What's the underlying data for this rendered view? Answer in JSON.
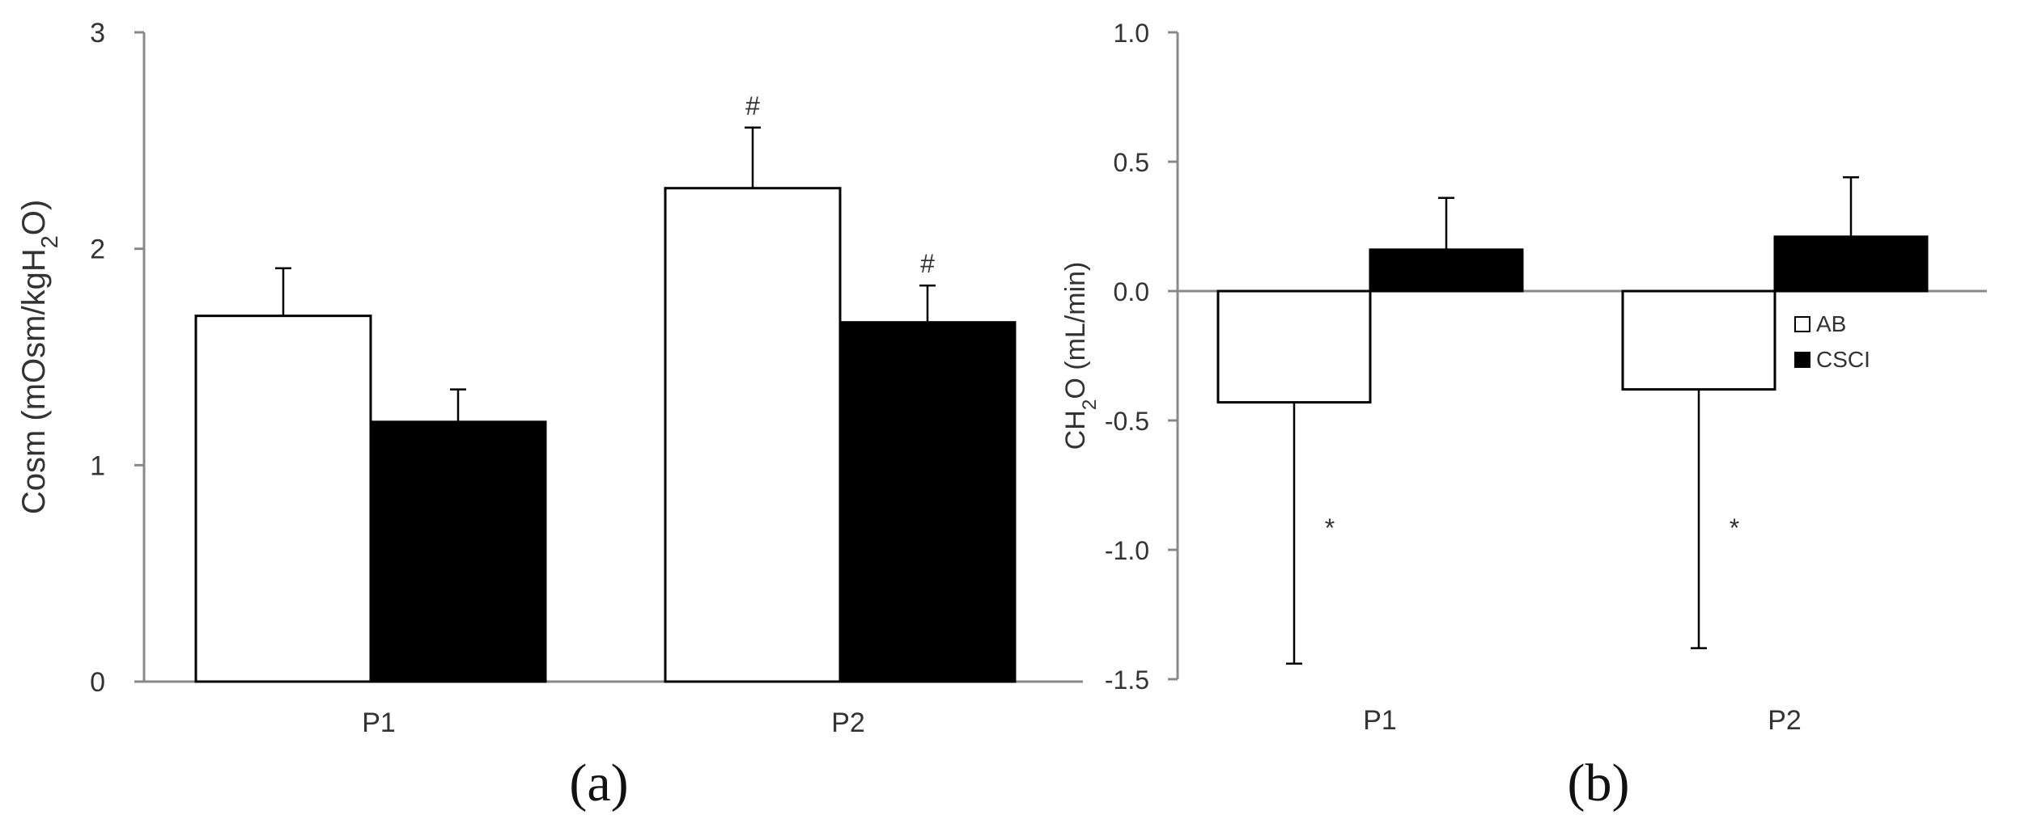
{
  "chart_data": [
    {
      "type": "bar",
      "panel_label": "(a)",
      "ylabel": "Cosm (mOsm/kgH₂O)",
      "ylim": [
        0,
        3
      ],
      "yticks": [
        "0",
        "1",
        "2",
        "3"
      ],
      "categories": [
        "P1",
        "P2"
      ],
      "series": [
        {
          "key": "AB",
          "fill": "#ffffff",
          "values": [
            1.69,
            2.28
          ],
          "errors": [
            0.22,
            0.28
          ],
          "marks": [
            "",
            "#"
          ]
        },
        {
          "key": "CSCI",
          "fill": "#000000",
          "values": [
            1.2,
            1.66
          ],
          "errors": [
            0.15,
            0.17
          ],
          "marks": [
            "",
            "#"
          ]
        }
      ]
    },
    {
      "type": "bar",
      "panel_label": "(b)",
      "ylabel": "CH₂O (mL/min)",
      "ylim": [
        -1.5,
        1.0
      ],
      "yticks": [
        "1.0",
        "0.5",
        "0.0",
        "-0.5",
        "-1.0",
        "-1.5"
      ],
      "categories": [
        "P1",
        "P2"
      ],
      "legend": {
        "position": "right",
        "entries": [
          "AB",
          "CSCI"
        ]
      },
      "series": [
        {
          "name": "AB",
          "fill": "#ffffff",
          "values": [
            -0.43,
            -0.38
          ],
          "errors": [
            1.01,
            1.0
          ],
          "marks": [
            "*",
            "*"
          ]
        },
        {
          "name": "CSCI",
          "fill": "#000000",
          "values": [
            0.16,
            0.21
          ],
          "errors": [
            0.2,
            0.23
          ],
          "marks": [
            "",
            ""
          ]
        }
      ]
    }
  ]
}
